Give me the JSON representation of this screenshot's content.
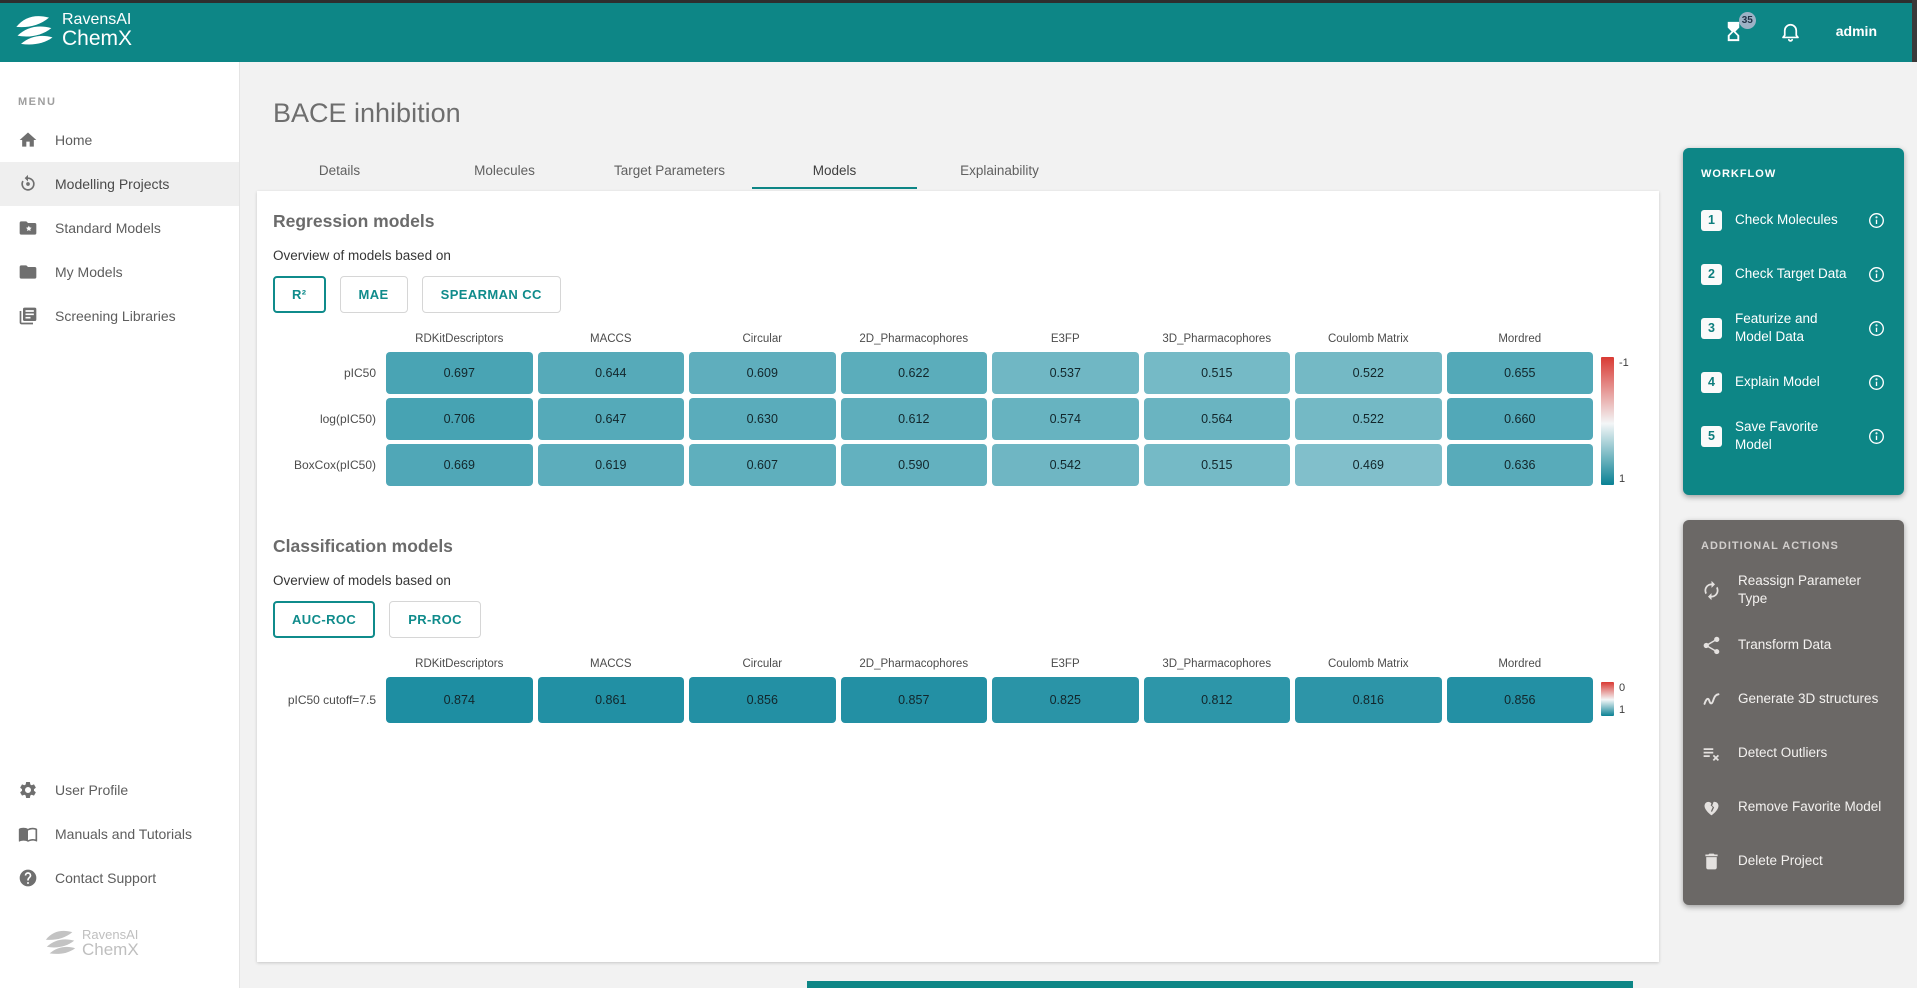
{
  "colors": {
    "header_teal": "#0d8686",
    "accent_text": "#0f8b8b",
    "heatmap_teal": "#007f96",
    "heatmap_red": "#d93a34",
    "panel_gray": "#6b6866"
  },
  "header": {
    "brand_line1": "RavensAI",
    "brand_line2": "ChemX",
    "hourglass_badge": "35",
    "username": "admin"
  },
  "sidebar": {
    "menu_label": "MENU",
    "items": [
      {
        "icon": "home-icon",
        "label": "Home"
      },
      {
        "icon": "model-training-icon",
        "label": "Modelling Projects",
        "active": true
      },
      {
        "icon": "folder-star-icon",
        "label": "Standard Models"
      },
      {
        "icon": "folder-icon",
        "label": "My Models"
      },
      {
        "icon": "library-icon",
        "label": "Screening Libraries"
      }
    ],
    "bottom_items": [
      {
        "icon": "gear-icon",
        "label": "User Profile"
      },
      {
        "icon": "book-icon",
        "label": "Manuals and Tutorials"
      },
      {
        "icon": "help-icon",
        "label": "Contact Support"
      }
    ],
    "watermark_line1": "RavensAI",
    "watermark_line2": "ChemX"
  },
  "page": {
    "title": "BACE inhibition",
    "tabs": [
      {
        "label": "Details"
      },
      {
        "label": "Molecules"
      },
      {
        "label": "Target Parameters"
      },
      {
        "label": "Models",
        "active": true
      },
      {
        "label": "Explainability"
      }
    ]
  },
  "regression": {
    "heading": "Regression models",
    "subheading": "Overview of models based on",
    "metrics": [
      {
        "label": "R²",
        "active": true
      },
      {
        "label": "MAE"
      },
      {
        "label": "SPEARMAN CC"
      }
    ]
  },
  "classification": {
    "heading": "Classification models",
    "subheading": "Overview of models based on",
    "metrics": [
      {
        "label": "AUC-ROC",
        "active": true
      },
      {
        "label": "PR-ROC"
      }
    ]
  },
  "chart_data": [
    {
      "type": "heatmap",
      "title": "Regression models — R²",
      "columns": [
        "RDKitDescriptors",
        "MACCS",
        "Circular",
        "2D_Pharmacophores",
        "E3FP",
        "3D_Pharmacophores",
        "Coulomb Matrix",
        "Mordred"
      ],
      "rows": [
        "pIC50",
        "log(pIC50)",
        "BoxCox(pIC50)"
      ],
      "values": [
        [
          0.697,
          0.644,
          0.609,
          0.622,
          0.537,
          0.515,
          0.522,
          0.655
        ],
        [
          0.706,
          0.647,
          0.63,
          0.612,
          0.574,
          0.564,
          0.522,
          0.66
        ],
        [
          0.669,
          0.619,
          0.607,
          0.59,
          0.542,
          0.515,
          0.469,
          0.636
        ]
      ],
      "value_range": [
        -1,
        1
      ],
      "colorbar": {
        "top_label": "-1",
        "bottom_label": "1"
      }
    },
    {
      "type": "heatmap",
      "title": "Classification models — AUC-ROC",
      "columns": [
        "RDKitDescriptors",
        "MACCS",
        "Circular",
        "2D_Pharmacophores",
        "E3FP",
        "3D_Pharmacophores",
        "Coulomb Matrix",
        "Mordred"
      ],
      "rows": [
        "pIC50 cutoff=7.5"
      ],
      "values": [
        [
          0.874,
          0.861,
          0.856,
          0.857,
          0.825,
          0.812,
          0.816,
          0.856
        ]
      ],
      "value_range": [
        0,
        1
      ],
      "colorbar": {
        "top_label": "0",
        "bottom_label": "1"
      }
    }
  ],
  "workflow": {
    "title": "WORKFLOW",
    "steps": [
      {
        "num": "1",
        "label": "Check Molecules"
      },
      {
        "num": "2",
        "label": "Check Target Data"
      },
      {
        "num": "3",
        "label": "Featurize and Model Data"
      },
      {
        "num": "4",
        "label": "Explain Model"
      },
      {
        "num": "5",
        "label": "Save Favorite Model"
      }
    ]
  },
  "additional_actions": {
    "title": "ADDITIONAL ACTIONS",
    "items": [
      {
        "icon": "autorenew-icon",
        "label": "Reassign Parameter Type"
      },
      {
        "icon": "share-icon",
        "label": "Transform Data"
      },
      {
        "icon": "squiggle-icon",
        "label": "Generate 3D structures"
      },
      {
        "icon": "playlist-remove-icon",
        "label": "Detect Outliers"
      },
      {
        "icon": "broken-heart-icon",
        "label": "Remove Favorite Model"
      },
      {
        "icon": "trash-icon",
        "label": "Delete Project"
      }
    ]
  }
}
